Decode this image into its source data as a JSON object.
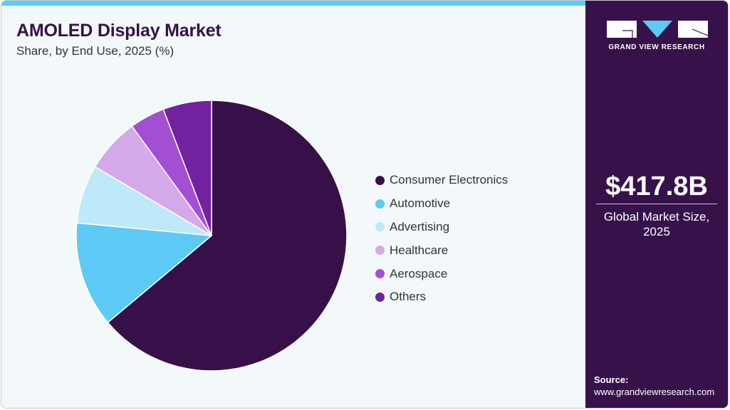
{
  "header": {
    "title": "AMOLED Display Market",
    "subtitle": "Share, by End Use, 2025 (%)"
  },
  "colors": {
    "accent_bar": "#5ccaf5",
    "title": "#37104a",
    "sidebar": "#37124a",
    "background": "#f3f8fb"
  },
  "chart_data": {
    "type": "pie",
    "title": "AMOLED Display Market",
    "subtitle": "Share, by End Use, 2025 (%)",
    "categories": [
      "Consumer Electronics",
      "Automotive",
      "Advertising",
      "Healthcare",
      "Aerospace",
      "Others"
    ],
    "values": [
      63.9,
      12.6,
      7.0,
      6.5,
      4.2,
      5.8
    ],
    "colors": [
      "#37104a",
      "#5ccaf5",
      "#bde9f8",
      "#d4a9ea",
      "#a34fd4",
      "#73229f"
    ],
    "start_angle": "12 o'clock",
    "direction": "clockwise",
    "legend_position": "right"
  },
  "legend": {
    "items": [
      {
        "label": "Consumer Electronics",
        "color": "#37104a"
      },
      {
        "label": "Automotive",
        "color": "#5ccaf5"
      },
      {
        "label": "Advertising",
        "color": "#bde9f8"
      },
      {
        "label": "Healthcare",
        "color": "#d4a9ea"
      },
      {
        "label": "Aerospace",
        "color": "#a34fd4"
      },
      {
        "label": "Others",
        "color": "#73229f"
      }
    ]
  },
  "sidebar": {
    "logo_text": "GRAND VIEW RESEARCH",
    "market_value": "$417.8B",
    "market_label_line1": "Global Market Size,",
    "market_label_line2": "2025",
    "source_label": "Source:",
    "source_url": "www.grandviewresearch.com"
  }
}
